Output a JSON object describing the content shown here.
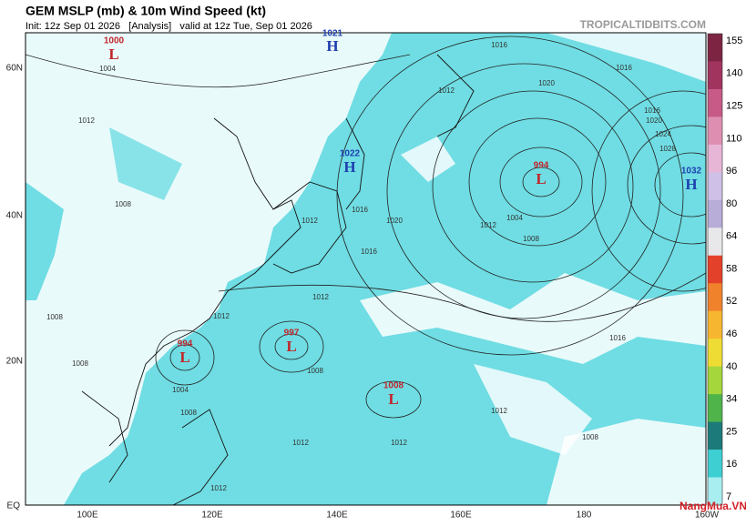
{
  "header": {
    "title": "GEM MSLP (mb) & 10m Wind Speed (kt)",
    "subtitle": "Init: 12z Sep 01 2026   [Analysis]   valid at 12z Tue, Sep 01 2026",
    "source": "TROPICALTIDBITS.COM"
  },
  "centers": [
    {
      "value": "1000",
      "letter": "L"
    },
    {
      "value": "1021",
      "letter": "H"
    },
    {
      "value": "1022",
      "letter": "H"
    },
    {
      "value": "994",
      "letter": "L"
    },
    {
      "value": "1032",
      "letter": "H"
    },
    {
      "value": "997",
      "letter": "L"
    },
    {
      "value": "994",
      "letter": "L"
    },
    {
      "value": "1008",
      "letter": "L"
    }
  ],
  "isobars": [
    "1016",
    "1004",
    "1012",
    "1008",
    "1016",
    "1020",
    "1012",
    "1016",
    "1004",
    "1008",
    "1012",
    "1016",
    "1020",
    "1024",
    "1028",
    "1012",
    "1020",
    "1016",
    "1012",
    "1008",
    "1012",
    "1008",
    "1004",
    "1008",
    "1012",
    "1008",
    "1012",
    "1016",
    "1012",
    "1012",
    "1008"
  ],
  "lat_labels": [
    "60N",
    "40N",
    "20N",
    "EQ"
  ],
  "lon_labels": [
    "100E",
    "120E",
    "140E",
    "160E",
    "180",
    "160W"
  ],
  "colorbar": {
    "labels": [
      155,
      140,
      125,
      110,
      96,
      80,
      64,
      58,
      52,
      46,
      40,
      34,
      25,
      16,
      7
    ],
    "colors": [
      "#7d2443",
      "#a1335f",
      "#c75a86",
      "#de8fb1",
      "#e7b5d6",
      "#cfc0e8",
      "#b8acd9",
      "#e8e8ea",
      "#e4412a",
      "#f0822c",
      "#f7b62f",
      "#eedc35",
      "#a5d63b",
      "#4fb44a",
      "#1d7a7a",
      "#3ecfd3",
      "#a8eef0"
    ]
  },
  "watermark": "NangMua.VN"
}
